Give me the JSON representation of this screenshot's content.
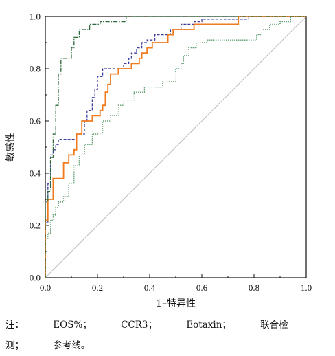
{
  "chart_data": {
    "type": "line",
    "xlabel": "1–特异性",
    "ylabel": "敏感性",
    "xlim": [
      0,
      1
    ],
    "ylim": [
      0,
      1
    ],
    "x_ticks": [
      "0.0",
      "0.2",
      "0.4",
      "0.6",
      "0.8",
      "1.0"
    ],
    "y_ticks": [
      "0.0",
      "0.2",
      "0.4",
      "0.6",
      "0.8",
      "1.0"
    ],
    "grid": false,
    "series": [
      {
        "name": "EOS%",
        "color": "#3a3f9c",
        "dash": "dashed",
        "x": [
          0.0,
          0.0,
          0.01,
          0.01,
          0.02,
          0.02,
          0.03,
          0.03,
          0.04,
          0.04,
          0.05,
          0.05,
          0.12,
          0.12,
          0.15,
          0.15,
          0.16,
          0.16,
          0.18,
          0.18,
          0.19,
          0.19,
          0.2,
          0.2,
          0.22,
          0.22,
          0.3,
          0.3,
          0.32,
          0.32,
          0.33,
          0.33,
          0.35,
          0.35,
          0.37,
          0.37,
          0.39,
          0.39,
          0.42,
          0.42,
          0.48,
          0.48,
          0.52,
          0.52,
          0.57,
          0.57,
          0.6,
          0.6,
          0.78,
          0.78,
          1.0
        ],
        "y": [
          0.0,
          0.21,
          0.21,
          0.36,
          0.36,
          0.47,
          0.47,
          0.49,
          0.49,
          0.51,
          0.51,
          0.53,
          0.53,
          0.55,
          0.55,
          0.6,
          0.6,
          0.64,
          0.64,
          0.69,
          0.69,
          0.72,
          0.72,
          0.77,
          0.77,
          0.8,
          0.8,
          0.82,
          0.82,
          0.84,
          0.84,
          0.86,
          0.86,
          0.88,
          0.88,
          0.9,
          0.9,
          0.91,
          0.91,
          0.93,
          0.93,
          0.95,
          0.95,
          0.97,
          0.97,
          0.98,
          0.98,
          0.99,
          0.99,
          1.0,
          1.0
        ]
      },
      {
        "name": "CCR3",
        "color": "#3e8a52",
        "dash": "dotted",
        "x": [
          0.0,
          0.0,
          0.01,
          0.01,
          0.02,
          0.02,
          0.03,
          0.03,
          0.04,
          0.04,
          0.05,
          0.05,
          0.07,
          0.07,
          0.09,
          0.09,
          0.11,
          0.11,
          0.13,
          0.13,
          0.15,
          0.15,
          0.18,
          0.18,
          0.22,
          0.22,
          0.25,
          0.25,
          0.28,
          0.28,
          0.3,
          0.3,
          0.34,
          0.34,
          0.38,
          0.38,
          0.45,
          0.45,
          0.5,
          0.5,
          0.52,
          0.52,
          0.53,
          0.53,
          0.55,
          0.55,
          0.58,
          0.58,
          0.62,
          0.62,
          0.81,
          0.81,
          0.83,
          0.83,
          0.86,
          0.86,
          0.9,
          0.9,
          0.94,
          0.94,
          1.0
        ],
        "y": [
          0.0,
          0.15,
          0.15,
          0.17,
          0.17,
          0.22,
          0.22,
          0.24,
          0.24,
          0.27,
          0.27,
          0.29,
          0.29,
          0.31,
          0.31,
          0.36,
          0.36,
          0.43,
          0.43,
          0.47,
          0.47,
          0.51,
          0.51,
          0.55,
          0.55,
          0.6,
          0.6,
          0.62,
          0.62,
          0.66,
          0.66,
          0.68,
          0.68,
          0.71,
          0.71,
          0.73,
          0.73,
          0.75,
          0.75,
          0.8,
          0.8,
          0.82,
          0.82,
          0.85,
          0.85,
          0.88,
          0.88,
          0.9,
          0.9,
          0.91,
          0.91,
          0.93,
          0.93,
          0.95,
          0.95,
          0.97,
          0.97,
          0.98,
          0.98,
          1.0,
          1.0
        ]
      },
      {
        "name": "Eotaxin",
        "color": "#f07a1e",
        "dash": "solid",
        "x": [
          0.0,
          0.0,
          0.01,
          0.01,
          0.03,
          0.03,
          0.07,
          0.07,
          0.09,
          0.09,
          0.11,
          0.11,
          0.12,
          0.12,
          0.14,
          0.14,
          0.18,
          0.18,
          0.21,
          0.21,
          0.22,
          0.22,
          0.23,
          0.23,
          0.24,
          0.24,
          0.25,
          0.25,
          0.28,
          0.28,
          0.33,
          0.33,
          0.36,
          0.36,
          0.37,
          0.37,
          0.39,
          0.39,
          0.41,
          0.41,
          0.47,
          0.47,
          0.49,
          0.49,
          0.57,
          0.57,
          0.74,
          0.74,
          1.0
        ],
        "y": [
          0.0,
          0.22,
          0.22,
          0.3,
          0.3,
          0.38,
          0.38,
          0.44,
          0.44,
          0.47,
          0.47,
          0.49,
          0.49,
          0.55,
          0.55,
          0.6,
          0.6,
          0.62,
          0.62,
          0.64,
          0.64,
          0.66,
          0.66,
          0.71,
          0.71,
          0.74,
          0.74,
          0.78,
          0.78,
          0.8,
          0.8,
          0.82,
          0.82,
          0.84,
          0.84,
          0.86,
          0.86,
          0.88,
          0.88,
          0.9,
          0.9,
          0.93,
          0.93,
          0.95,
          0.95,
          0.97,
          0.97,
          1.0,
          1.0
        ]
      },
      {
        "name": "联合检测",
        "color": "#2e6a3a",
        "dash": "dashdot",
        "x": [
          0.0,
          0.0,
          0.01,
          0.01,
          0.02,
          0.02,
          0.03,
          0.03,
          0.04,
          0.04,
          0.05,
          0.05,
          0.06,
          0.06,
          0.1,
          0.1,
          0.11,
          0.11,
          0.13,
          0.13,
          0.17,
          0.17,
          0.21,
          0.21,
          0.31,
          0.31,
          1.0
        ],
        "y": [
          0.0,
          0.29,
          0.29,
          0.33,
          0.33,
          0.46,
          0.46,
          0.55,
          0.55,
          0.66,
          0.66,
          0.78,
          0.78,
          0.84,
          0.84,
          0.88,
          0.88,
          0.92,
          0.92,
          0.95,
          0.95,
          0.97,
          0.97,
          0.98,
          0.98,
          1.0,
          1.0
        ]
      },
      {
        "name": "参考线",
        "color": "#bdbdbd",
        "dash": "solid",
        "x": [
          0,
          1
        ],
        "y": [
          0,
          1
        ]
      }
    ]
  },
  "note": {
    "prefix": "注：",
    "items": [
      {
        "label": "EOS%；"
      },
      {
        "label": "CCR3；"
      },
      {
        "label": "Eotaxin；"
      },
      {
        "label": "联合检"
      }
    ],
    "line2_prefix": "测；",
    "line2_label": "参考线。"
  }
}
